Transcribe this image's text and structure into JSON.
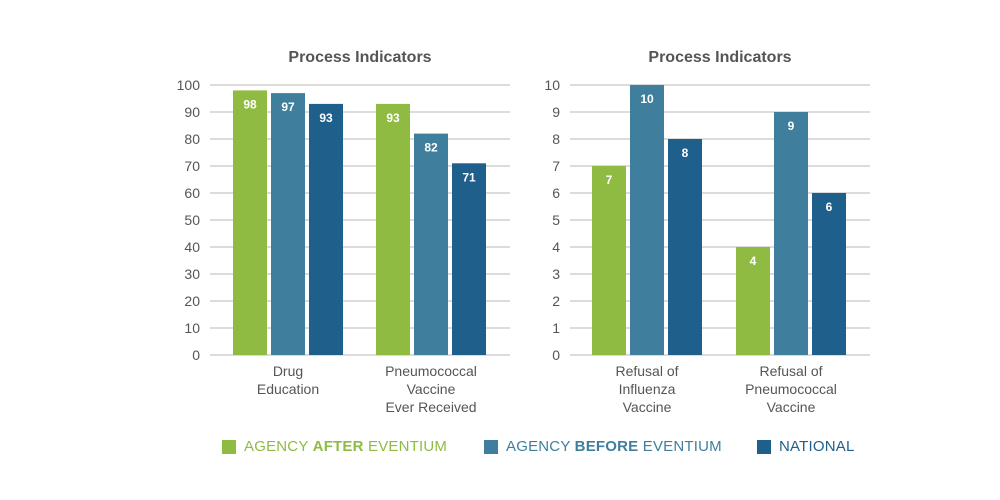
{
  "colors": {
    "after": "#8fbb43",
    "before": "#3f7f9d",
    "national": "#1e5f8c",
    "grid": "#c8c8c8",
    "axis_text": "#555555",
    "title_text": "#555555"
  },
  "legend": [
    {
      "pre": "AGENCY ",
      "bold": "AFTER",
      "post": " EVENTIUM",
      "color_key": "after"
    },
    {
      "pre": "AGENCY ",
      "bold": "BEFORE",
      "post": " EVENTIUM",
      "color_key": "before"
    },
    {
      "pre": "",
      "bold": "",
      "post": "NATIONAL",
      "color_key": "national"
    }
  ],
  "chart_data": [
    {
      "type": "bar",
      "title": "Process Indicators",
      "categories": [
        [
          "Drug",
          "Education"
        ],
        [
          "Pneumococcal",
          "Vaccine",
          "Ever Received"
        ]
      ],
      "series": [
        {
          "name": "AGENCY AFTER EVENTIUM",
          "color_key": "after",
          "values": [
            98,
            93
          ]
        },
        {
          "name": "AGENCY BEFORE EVENTIUM",
          "color_key": "before",
          "values": [
            97,
            82
          ]
        },
        {
          "name": "NATIONAL",
          "color_key": "national",
          "values": [
            93,
            71
          ]
        }
      ],
      "ylim": [
        0,
        100
      ],
      "yticks": [
        0,
        10,
        20,
        30,
        40,
        50,
        60,
        70,
        80,
        90,
        100
      ],
      "grid": true,
      "xlabel": "",
      "ylabel": ""
    },
    {
      "type": "bar",
      "title": "Process Indicators",
      "categories": [
        [
          "Refusal of",
          "Influenza",
          "Vaccine"
        ],
        [
          "Refusal of",
          "Pneumococcal",
          "Vaccine"
        ]
      ],
      "series": [
        {
          "name": "AGENCY AFTER EVENTIUM",
          "color_key": "after",
          "values": [
            7,
            4
          ]
        },
        {
          "name": "AGENCY BEFORE EVENTIUM",
          "color_key": "before",
          "values": [
            10,
            9
          ]
        },
        {
          "name": "NATIONAL",
          "color_key": "national",
          "values": [
            8,
            6
          ]
        }
      ],
      "ylim": [
        0,
        10
      ],
      "yticks": [
        0,
        1,
        2,
        3,
        4,
        5,
        6,
        7,
        8,
        9,
        10
      ],
      "grid": true,
      "xlabel": "",
      "ylabel": ""
    }
  ]
}
